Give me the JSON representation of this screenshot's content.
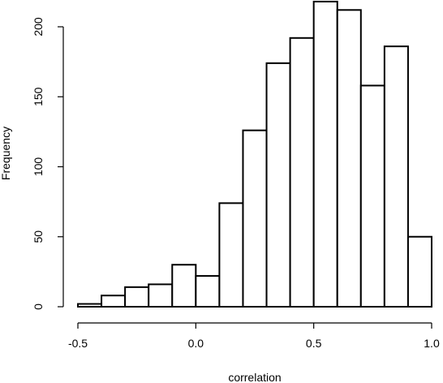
{
  "chart_data": {
    "type": "bar",
    "title": "",
    "xlabel": "correlation",
    "ylabel": "Frequency",
    "xlim": [
      -0.5,
      1.0
    ],
    "ylim": [
      0,
      220
    ],
    "x_ticks": [
      -0.5,
      0.0,
      0.5,
      1.0
    ],
    "x_tick_labels": [
      "-0.5",
      "0.0",
      "0.5",
      "1.0"
    ],
    "y_ticks": [
      0,
      50,
      100,
      150,
      200
    ],
    "y_tick_labels": [
      "0",
      "50",
      "100",
      "150",
      "200"
    ],
    "bins": [
      [
        -0.5,
        -0.4
      ],
      [
        -0.4,
        -0.3
      ],
      [
        -0.3,
        -0.2
      ],
      [
        -0.2,
        -0.1
      ],
      [
        -0.1,
        0.0
      ],
      [
        0.0,
        0.1
      ],
      [
        0.1,
        0.2
      ],
      [
        0.2,
        0.3
      ],
      [
        0.3,
        0.4
      ],
      [
        0.4,
        0.5
      ],
      [
        0.5,
        0.6
      ],
      [
        0.6,
        0.7
      ],
      [
        0.7,
        0.8
      ],
      [
        0.8,
        0.9
      ],
      [
        0.9,
        1.0
      ]
    ],
    "values": [
      2,
      8,
      14,
      16,
      30,
      22,
      74,
      126,
      174,
      192,
      218,
      212,
      158,
      186,
      50
    ],
    "grid": false,
    "legend": "none"
  }
}
